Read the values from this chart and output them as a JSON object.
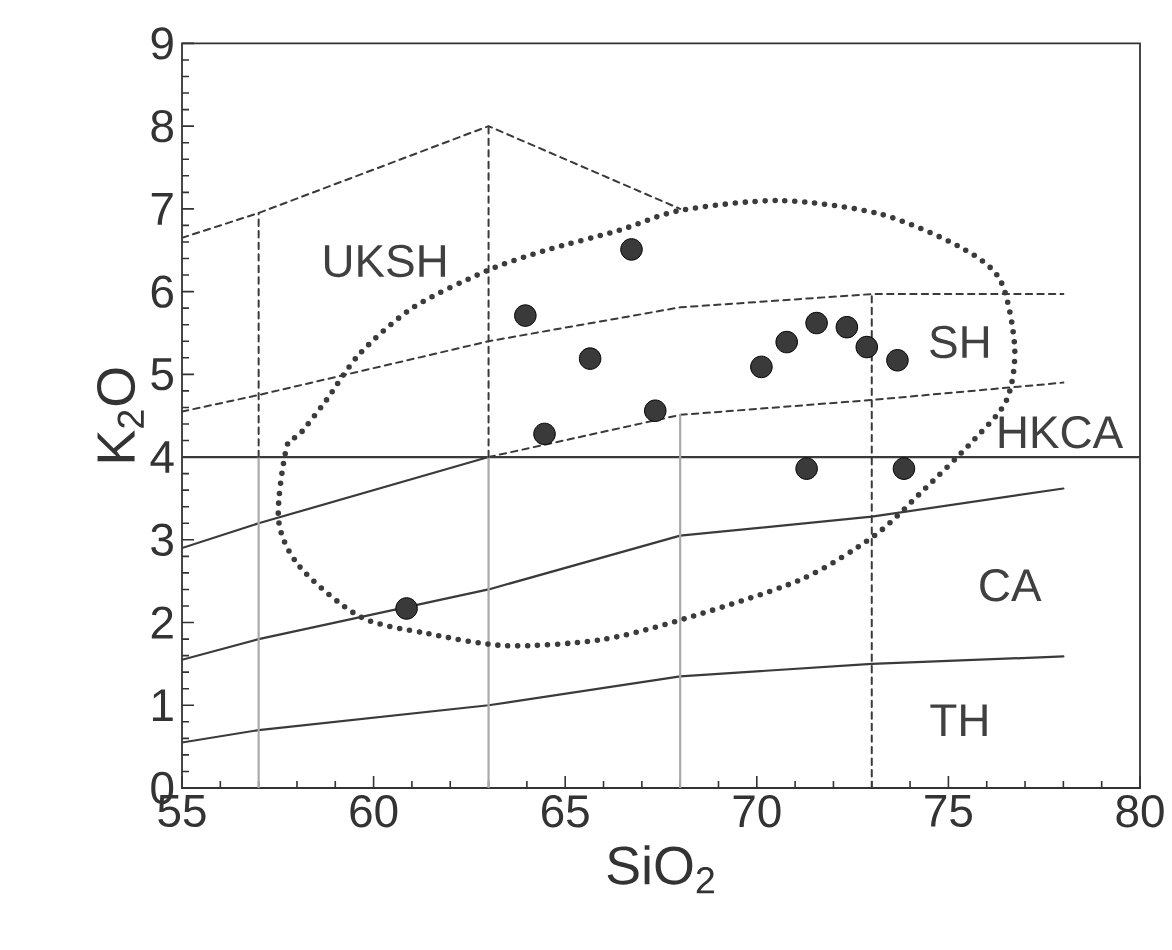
{
  "chart_data": {
    "type": "scatter",
    "xlabel": "SiO$_{2}$",
    "ylabel": "K$_{2}$O",
    "xlim": [
      55,
      80
    ],
    "ylim": [
      0,
      9
    ],
    "xticks": [
      55,
      60,
      65,
      70,
      75,
      80
    ],
    "yticks": [
      0,
      1,
      2,
      3,
      4,
      5,
      6,
      7,
      8,
      9
    ],
    "marker": "circle",
    "series": [
      {
        "color": "#3a3a3a",
        "x": [
          60.86,
          63.96,
          65.65,
          64.46,
          66.73,
          67.35,
          70.12,
          70.78,
          71.56,
          72.35,
          72.87,
          73.67,
          71.3,
          73.84
        ],
        "values": [
          2.17,
          5.71,
          5.19,
          4.28,
          6.51,
          4.56,
          5.09,
          5.39,
          5.62,
          5.57,
          5.33,
          5.17,
          3.86,
          3.86
        ]
      },
      {
        "type": "line",
        "color": "#3a3a3a",
        "marker": "none",
        "line_style": "solid",
        "x": [
          55,
          57,
          63,
          68,
          73,
          78
        ],
        "values": [
          0.55,
          0.7,
          1.0,
          1.35,
          1.5,
          1.59
        ]
      },
      {
        "type": "line",
        "color": "#3a3a3a",
        "marker": "none",
        "line_style": "solid",
        "x": [
          55,
          57,
          63,
          68,
          73,
          78
        ],
        "values": [
          1.55,
          1.8,
          2.4,
          3.05,
          3.28,
          3.62
        ]
      },
      {
        "type": "line",
        "color": "#3a3a3a",
        "marker": "none",
        "line_style": "solid",
        "x": [
          55,
          57,
          63
        ],
        "values": [
          2.9,
          3.2,
          4.0
        ]
      },
      {
        "type": "line",
        "color": "#3a3a3a",
        "marker": "none",
        "line_style": "solid",
        "x": [
          55,
          80
        ],
        "values": [
          4.0,
          4.0
        ]
      },
      {
        "type": "line",
        "color": "#3a3a3a",
        "marker": "none",
        "line_style": "dashed",
        "x": [
          63,
          68,
          73,
          78
        ],
        "values": [
          4.0,
          4.51,
          4.69,
          4.9
        ]
      },
      {
        "type": "line",
        "color": "#3a3a3a",
        "marker": "none",
        "line_style": "dashed",
        "x": [
          55,
          57,
          63,
          68,
          73,
          78
        ],
        "values": [
          4.55,
          4.75,
          5.4,
          5.81,
          5.97,
          5.97
        ]
      },
      {
        "type": "line",
        "color": "#3a3a3a",
        "marker": "none",
        "line_style": "dashed",
        "x": [
          55,
          57,
          63,
          68
        ],
        "values": [
          6.65,
          6.95,
          8.0,
          7.0
        ]
      },
      {
        "type": "line",
        "color": "#aaaaaa",
        "marker": "none",
        "line_style": "solid",
        "x": [
          57,
          57
        ],
        "values": [
          0,
          4.0
        ]
      },
      {
        "type": "line",
        "color": "#aaaaaa",
        "marker": "none",
        "line_style": "solid",
        "x": [
          63,
          63
        ],
        "values": [
          0,
          4.0
        ]
      },
      {
        "type": "line",
        "color": "#aaaaaa",
        "marker": "none",
        "line_style": "solid",
        "x": [
          68,
          68
        ],
        "values": [
          0,
          4.51
        ]
      },
      {
        "type": "line",
        "color": "#3a3a3a",
        "marker": "none",
        "line_style": "dashed",
        "x": [
          57,
          57
        ],
        "values": [
          4.0,
          6.95
        ]
      },
      {
        "type": "line",
        "color": "#3a3a3a",
        "marker": "none",
        "line_style": "dashed",
        "x": [
          63,
          63
        ],
        "values": [
          4.0,
          8.0
        ]
      },
      {
        "type": "line",
        "color": "#3a3a3a",
        "marker": "none",
        "line_style": "dashed",
        "x": [
          73,
          73
        ],
        "values": [
          0,
          5.97
        ]
      }
    ],
    "annotations": [
      "UKSH",
      "SH",
      "HKCA",
      "CA",
      "TH"
    ]
  }
}
